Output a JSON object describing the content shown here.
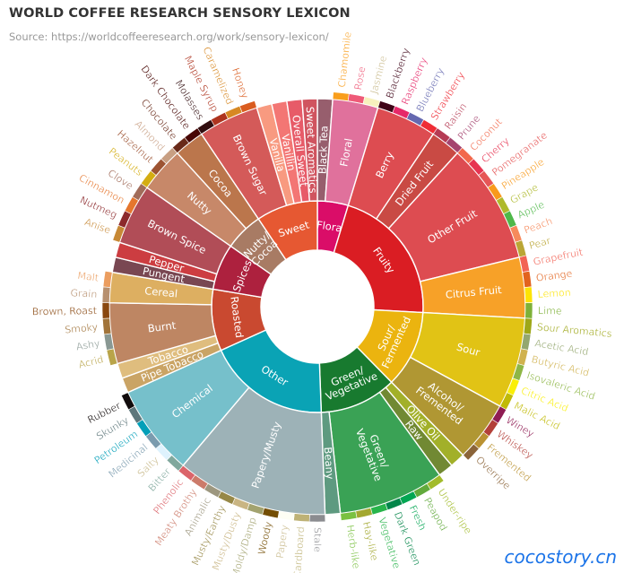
{
  "page": {
    "title": "WORLD COFFEE RESEARCH SENSORY LEXICON",
    "subtitle": "Source: https://worldcoffeeresearch.org/work/sensory-lexicon/",
    "watermark": "cocostory.cn"
  },
  "chart_data": {
    "type": "sunburst",
    "title": "WORLD COFFEE RESEARCH SENSORY LEXICON",
    "subtitle": "Source: https://worldcoffeeresearch.org/work/sensory-lexicon/",
    "tree": [
      {
        "name": "Flora",
        "color": "#da0d68",
        "children": [
          {
            "name": "Black Tea",
            "color": "#975e6d",
            "value": 1
          },
          {
            "name": "Floral",
            "color": "#e0719c",
            "children": [
              {
                "name": "Chamomile",
                "color": "#f99e1c",
                "value": 1
              },
              {
                "name": "Rose",
                "color": "#ef5a78",
                "value": 1
              },
              {
                "name": "Jasmine",
                "color": "#f7f1bd",
                "value": 1
              }
            ]
          }
        ]
      },
      {
        "name": "Fruity",
        "color": "#da1d23",
        "children": [
          {
            "name": "Berry",
            "color": "#dd4c51",
            "children": [
              {
                "name": "Blackberry",
                "color": "#3e0317",
                "value": 1
              },
              {
                "name": "Raspberry",
                "color": "#e62969",
                "value": 1
              },
              {
                "name": "Blueberry",
                "color": "#6569b0",
                "value": 1
              },
              {
                "name": "Strawberry",
                "color": "#ef2d36",
                "value": 1
              }
            ]
          },
          {
            "name": "Dried Fruit",
            "color": "#c94a44",
            "children": [
              {
                "name": "Raisin",
                "color": "#b53b54",
                "value": 1
              },
              {
                "name": "Prune",
                "color": "#a5446f",
                "value": 1
              }
            ]
          },
          {
            "name": "Other Fruit",
            "color": "#dd4c51",
            "children": [
              {
                "name": "Coconut",
                "color": "#f2684b",
                "value": 1
              },
              {
                "name": "Cherry",
                "color": "#e73451",
                "value": 1
              },
              {
                "name": "Pomegranate",
                "color": "#e65656",
                "value": 1
              },
              {
                "name": "Pineapple",
                "color": "#f89a1c",
                "value": 1
              },
              {
                "name": "Grape",
                "color": "#aeb92c",
                "value": 1
              },
              {
                "name": "Apple",
                "color": "#4eb849",
                "value": 1
              },
              {
                "name": "Peach",
                "color": "#f68a5c",
                "value": 1
              },
              {
                "name": "Pear",
                "color": "#baa635",
                "value": 1
              }
            ]
          },
          {
            "name": "Citrus Fruit",
            "color": "#f7a128",
            "children": [
              {
                "name": "Grapefruit",
                "color": "#f26355",
                "value": 1
              },
              {
                "name": "Orange",
                "color": "#e2631e",
                "value": 1
              },
              {
                "name": "Lemon",
                "color": "#fde404",
                "value": 1
              },
              {
                "name": "Lime",
                "color": "#7eb138",
                "value": 1
              }
            ]
          }
        ]
      },
      {
        "name": "Sour/\nFermented",
        "color": "#ebb40f",
        "children": [
          {
            "name": "Sour",
            "color": "#e1c315",
            "children": [
              {
                "name": "Sour Aromatics",
                "color": "#9ea718",
                "value": 1
              },
              {
                "name": "Acetic Acid",
                "color": "#94a76f",
                "value": 1
              },
              {
                "name": "Butyric Acid",
                "color": "#d0b24f",
                "value": 1
              },
              {
                "name": "Isovaleric Acid",
                "color": "#8eb646",
                "value": 1
              },
              {
                "name": "Citric Acid",
                "color": "#faef07",
                "value": 1
              },
              {
                "name": "Malic Acid",
                "color": "#c1ba07",
                "value": 1
              }
            ]
          },
          {
            "name": "Alcohol/\nFremented",
            "color": "#b09733",
            "children": [
              {
                "name": "Winey",
                "color": "#8f1c53",
                "value": 1
              },
              {
                "name": "Whiskey",
                "color": "#b34039",
                "value": 1
              },
              {
                "name": "Fremented",
                "color": "#ba9232",
                "value": 1
              },
              {
                "name": "Overripe",
                "color": "#8b6439",
                "value": 1
              }
            ]
          }
        ]
      },
      {
        "name": "Green/\nVegetative",
        "color": "#187a2f",
        "children": [
          {
            "name": "Olive Oil",
            "color": "#a2b029",
            "value": 1
          },
          {
            "name": "Raw",
            "color": "#718933",
            "value": 1
          },
          {
            "name": "Green/\nVegetative",
            "color": "#3aa255",
            "children": [
              {
                "name": "Under-ripe",
                "color": "#a2bb2b",
                "value": 1
              },
              {
                "name": "Peapod",
                "color": "#62aa3c",
                "value": 1
              },
              {
                "name": "Fresh",
                "color": "#03a653",
                "value": 1
              },
              {
                "name": "Dark Green",
                "color": "#038549",
                "value": 1
              },
              {
                "name": "Vegetative",
                "color": "#28b44b",
                "value": 1
              },
              {
                "name": "Hay-like",
                "color": "#a3a830",
                "value": 1
              },
              {
                "name": "Herb-like",
                "color": "#7ac141",
                "value": 1
              }
            ]
          },
          {
            "name": "Beany",
            "color": "#5e9a80",
            "value": 1
          }
        ]
      },
      {
        "name": "Other",
        "color": "#0aa3b5",
        "children": [
          {
            "name": "Papery/Musty",
            "color": "#9db2b7",
            "children": [
              {
                "name": "Stale",
                "color": "#8b8c90",
                "value": 1
              },
              {
                "name": "Cardboard",
                "color": "#beb276",
                "value": 1
              },
              {
                "name": "Papery",
                "color": "#fefef4",
                "value": 1
              },
              {
                "name": "Woody",
                "color": "#744e03",
                "value": 1
              },
              {
                "name": "Moldy/Damp",
                "color": "#a3a36f",
                "value": 1
              },
              {
                "name": "Musty/Dusty",
                "color": "#c9b583",
                "value": 1
              },
              {
                "name": "Musty/Earthy",
                "color": "#978847",
                "value": 1
              },
              {
                "name": "Animalic",
                "color": "#9d977f",
                "value": 1
              },
              {
                "name": "Meaty Brothy",
                "color": "#cc7b6a",
                "value": 1
              },
              {
                "name": "Phenolic",
                "color": "#db646a",
                "value": 1
              }
            ]
          },
          {
            "name": "Chemical",
            "color": "#76c0cb",
            "children": [
              {
                "name": "Bitter",
                "color": "#80a89d",
                "value": 1
              },
              {
                "name": "Salty",
                "color": "#def2fd",
                "value": 1
              },
              {
                "name": "Medicinal",
                "color": "#7a9bae",
                "value": 1
              },
              {
                "name": "Petroleum",
                "color": "#039fb8",
                "value": 1
              },
              {
                "name": "Skunky",
                "color": "#5e777b",
                "value": 1
              },
              {
                "name": "Rubber",
                "color": "#120c0c",
                "value": 1
              }
            ]
          }
        ]
      },
      {
        "name": "Roasted",
        "color": "#c94930",
        "children": [
          {
            "name": "Pipe Tobacco",
            "color": "#caa465",
            "value": 1
          },
          {
            "name": "Tobacco",
            "color": "#dfbd7e",
            "value": 1
          },
          {
            "name": "Burnt",
            "color": "#be8663",
            "children": [
              {
                "name": "Acrid",
                "color": "#b9a449",
                "value": 1
              },
              {
                "name": "Ashy",
                "color": "#899893",
                "value": 1
              },
              {
                "name": "Smoky",
                "color": "#a1743b",
                "value": 1
              },
              {
                "name": "Brown, Roast",
                "color": "#894810",
                "value": 1
              }
            ]
          },
          {
            "name": "Cereal",
            "color": "#ddaf61",
            "children": [
              {
                "name": "Grain",
                "color": "#b7906f",
                "value": 1
              },
              {
                "name": "Malt",
                "color": "#eb9d5f",
                "value": 1
              }
            ]
          }
        ]
      },
      {
        "name": "Spices",
        "color": "#ad213e",
        "children": [
          {
            "name": "Pungent",
            "color": "#794752",
            "value": 1
          },
          {
            "name": "Pepper",
            "color": "#cc3d41",
            "value": 1
          },
          {
            "name": "Brown Spice",
            "color": "#b14d57",
            "children": [
              {
                "name": "Anise",
                "color": "#c78936",
                "value": 1
              },
              {
                "name": "Nutmeg",
                "color": "#8c292c",
                "value": 1
              },
              {
                "name": "Cinnamon",
                "color": "#e5762e",
                "value": 1
              },
              {
                "name": "Clove",
                "color": "#a16c5a",
                "value": 1
              }
            ]
          }
        ]
      },
      {
        "name": "Nutty/\nCocoa",
        "color": "#a87b64",
        "children": [
          {
            "name": "Nutty",
            "color": "#c78869",
            "children": [
              {
                "name": "Peanuts",
                "color": "#d4ad12",
                "value": 1
              },
              {
                "name": "Hazelnut",
                "color": "#9d5433",
                "value": 1
              },
              {
                "name": "Almond",
                "color": "#c89f83",
                "value": 1
              }
            ]
          },
          {
            "name": "Cocoa",
            "color": "#bb764c",
            "children": [
              {
                "name": "Chocolate",
                "color": "#692a19",
                "value": 1
              },
              {
                "name": "Dark Chocolate",
                "color": "#470604",
                "value": 1
              }
            ]
          }
        ]
      },
      {
        "name": "Sweet",
        "color": "#e65832",
        "children": [
          {
            "name": "Brown Sugar",
            "color": "#d45a59",
            "children": [
              {
                "name": "Molasses",
                "color": "#310d0f",
                "value": 1
              },
              {
                "name": "Maple Syrup",
                "color": "#ae341f",
                "value": 1
              },
              {
                "name": "Caramelized",
                "color": "#d78823",
                "value": 1
              },
              {
                "name": "Honey",
                "color": "#da5c1f",
                "value": 1
              }
            ]
          },
          {
            "name": "Vanilla",
            "color": "#f89a80",
            "value": 1
          },
          {
            "name": "Vanillin",
            "color": "#f37674",
            "value": 1
          },
          {
            "name": "Overall Sweet",
            "color": "#e75b68",
            "value": 1
          },
          {
            "name": "Sweet Aromatics",
            "color": "#d0545f",
            "value": 1
          }
        ]
      }
    ]
  }
}
